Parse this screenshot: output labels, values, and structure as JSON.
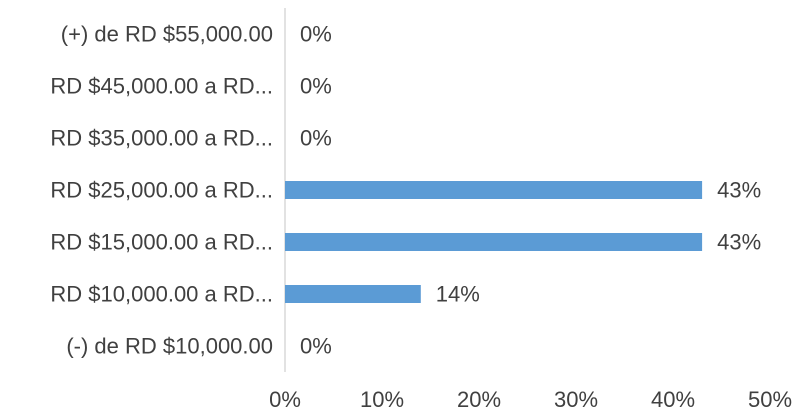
{
  "chart_data": {
    "type": "bar",
    "orientation": "horizontal",
    "title": "",
    "xlabel": "",
    "ylabel": "",
    "categories": [
      "(+) de RD $55,000.00",
      "RD $45,000.00 a RD...",
      "RD $35,000.00 a RD...",
      "RD $25,000.00 a RD...",
      "RD $15,000.00 a RD...",
      "RD $10,000.00 a RD...",
      "(-) de RD $10,000.00"
    ],
    "values": [
      0,
      0,
      0,
      43,
      43,
      14,
      0
    ],
    "data_labels": [
      "0%",
      "0%",
      "0%",
      "43%",
      "43%",
      "14%",
      "0%"
    ],
    "xlim": [
      0,
      50
    ],
    "x_ticks": [
      0,
      10,
      20,
      30,
      40,
      50
    ],
    "x_tick_labels": [
      "0%",
      "10%",
      "20%",
      "30%",
      "40%",
      "50%"
    ],
    "grid": false,
    "legend": "none",
    "colors": {
      "bar": "#5b9bd5",
      "text": "#404040",
      "axis": "#d9d9d9"
    }
  }
}
